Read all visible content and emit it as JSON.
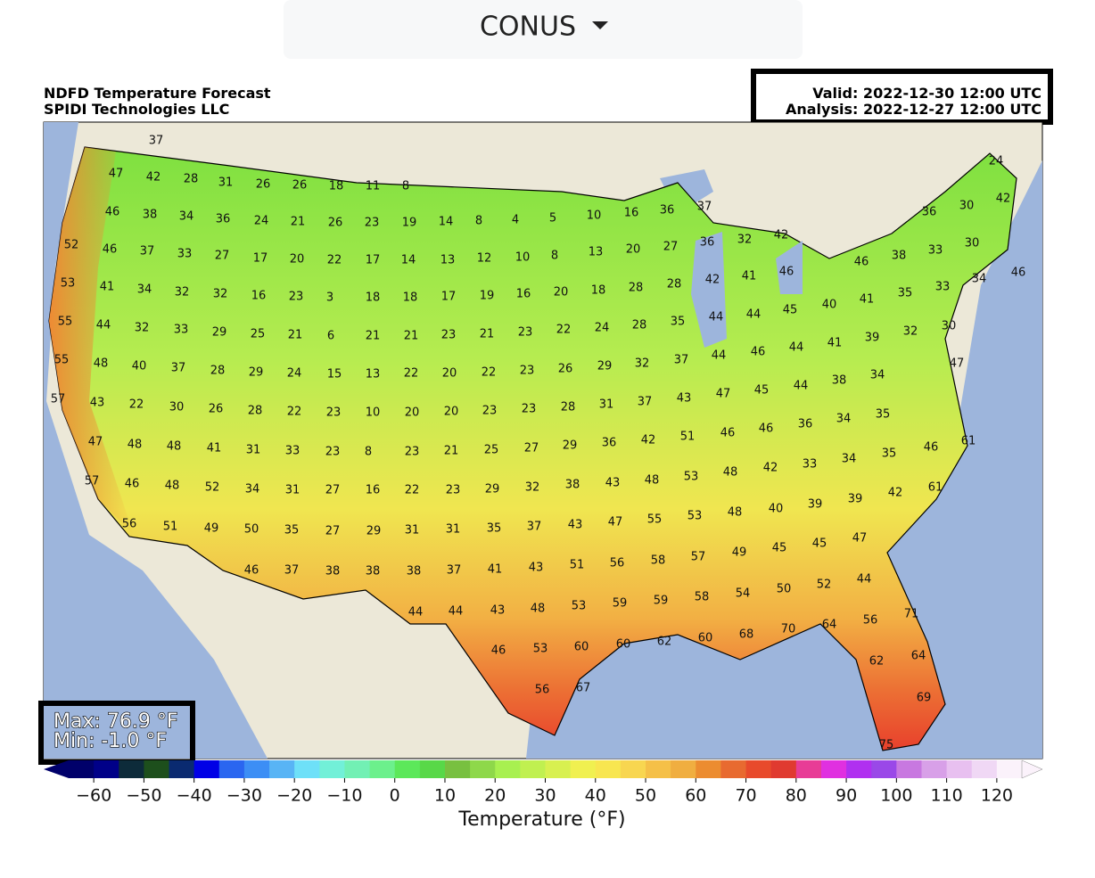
{
  "dropdown": {
    "label": "CONUS"
  },
  "map": {
    "title": "NDFD Temperature Forecast",
    "subtitle": "SPIDI Technologies LLC",
    "valid": "Valid: 2022-12-30 12:00 UTC",
    "analysis": "Analysis: 2022-12-27 12:00 UTC",
    "max": "Max: 76.9 °F",
    "min": "Min: -1.0 °F",
    "point_values": [
      37,
      47,
      42,
      28,
      31,
      26,
      26,
      18,
      11,
      8,
      46,
      38,
      34,
      36,
      24,
      21,
      26,
      23,
      19,
      14,
      8,
      4,
      5,
      10,
      16,
      36,
      37,
      52,
      46,
      37,
      33,
      27,
      17,
      20,
      22,
      17,
      14,
      13,
      12,
      10,
      8,
      13,
      20,
      27,
      36,
      32,
      42,
      36,
      30,
      42,
      24,
      53,
      41,
      34,
      32,
      32,
      16,
      23,
      3,
      18,
      18,
      17,
      19,
      16,
      20,
      18,
      28,
      28,
      42,
      41,
      46,
      46,
      38,
      33,
      30,
      55,
      44,
      32,
      33,
      29,
      25,
      21,
      6,
      21,
      21,
      23,
      21,
      23,
      22,
      24,
      28,
      35,
      44,
      44,
      45,
      40,
      41,
      35,
      33,
      34,
      46,
      55,
      48,
      40,
      37,
      28,
      29,
      24,
      15,
      13,
      22,
      20,
      22,
      23,
      26,
      29,
      32,
      37,
      44,
      46,
      44,
      41,
      39,
      32,
      30,
      47,
      57,
      43,
      22,
      30,
      26,
      28,
      22,
      23,
      10,
      20,
      20,
      23,
      23,
      28,
      31,
      37,
      43,
      47,
      45,
      44,
      38,
      34,
      47,
      48,
      48,
      41,
      31,
      33,
      23,
      8,
      23,
      21,
      25,
      27,
      29,
      36,
      42,
      51,
      46,
      46,
      36,
      34,
      35,
      46,
      61,
      57,
      46,
      48,
      52,
      34,
      31,
      27,
      16,
      22,
      23,
      29,
      32,
      38,
      43,
      48,
      53,
      48,
      42,
      33,
      34,
      35,
      56,
      51,
      49,
      50,
      35,
      27,
      29,
      31,
      31,
      35,
      37,
      43,
      47,
      55,
      53,
      48,
      40,
      39,
      39,
      42,
      61,
      46,
      37,
      38,
      38,
      38,
      37,
      41,
      43,
      51,
      56,
      58,
      57,
      49,
      45,
      45,
      47,
      44,
      44,
      43,
      48,
      53,
      59,
      59,
      58,
      54,
      50,
      52,
      44,
      46,
      53,
      60,
      60,
      62,
      60,
      68,
      70,
      64,
      56,
      71,
      56,
      67,
      62,
      64,
      69,
      75
    ]
  },
  "colorbar": {
    "label": "Temperature (°F)",
    "xlim": [
      -65,
      125
    ],
    "colors": [
      "#00006a",
      "#000088",
      "#0d2b3a",
      "#1d4f1c",
      "#0a2a70",
      "#0000e6",
      "#2a66f0",
      "#3c8ef5",
      "#58b4f5",
      "#6ee0f8",
      "#72f0d8",
      "#72f0b4",
      "#6cf08c",
      "#5ce85a",
      "#58d848",
      "#78c040",
      "#8ed84a",
      "#a8f050",
      "#c0f050",
      "#d8f050",
      "#f0f050",
      "#f8e650",
      "#f8d650",
      "#f5c048",
      "#f0ae40",
      "#ec8c30",
      "#e86a30",
      "#e84a2c",
      "#e03a30",
      "#e83c96",
      "#e030e0",
      "#b030f0",
      "#9a48e8",
      "#c878e0",
      "#d8a0e8",
      "#e8c0f0",
      "#f0d8f5",
      "#fbf2fb"
    ],
    "ticks": [
      {
        "value": -60,
        "label": "−60"
      },
      {
        "value": -50,
        "label": "−50"
      },
      {
        "value": -40,
        "label": "−40"
      },
      {
        "value": -30,
        "label": "−30"
      },
      {
        "value": -20,
        "label": "−20"
      },
      {
        "value": -10,
        "label": "−10"
      },
      0,
      10,
      20,
      30,
      40,
      50,
      60,
      70,
      80,
      90,
      100,
      110,
      120
    ]
  }
}
